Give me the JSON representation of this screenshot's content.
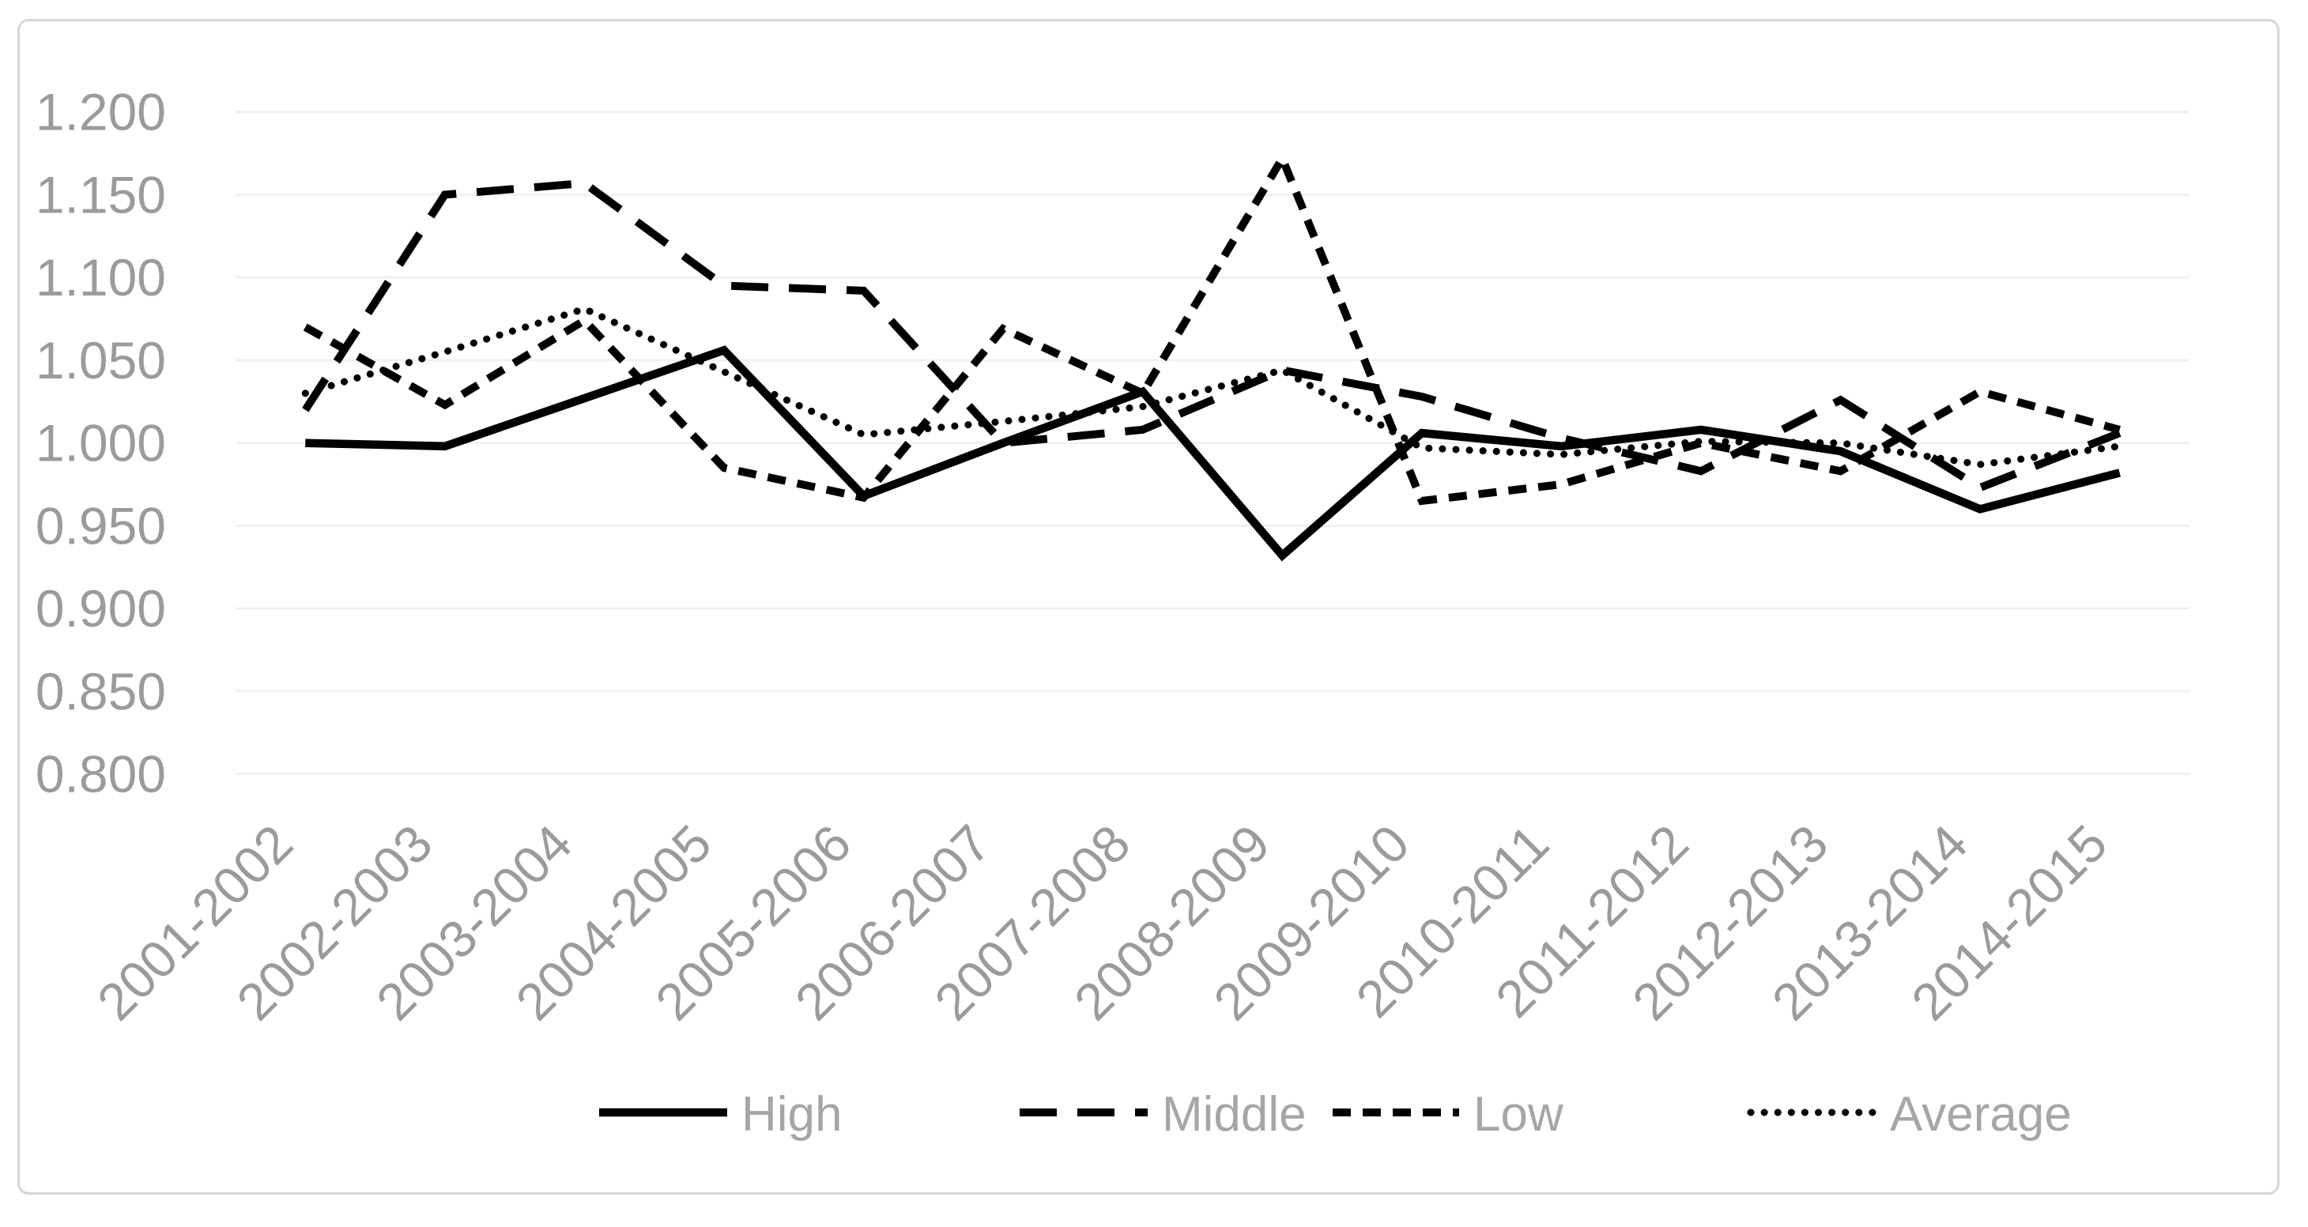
{
  "chart_data": {
    "type": "line",
    "title": "",
    "xlabel": "",
    "ylabel": "",
    "grid": "horizontal",
    "legend_position": "bottom",
    "categories": [
      "2001-2002",
      "2002-2003",
      "2003-2004",
      "2004-2005",
      "2005-2006",
      "2006-2007",
      "2007-2008",
      "2008-2009",
      "2009-2010",
      "2010-2011",
      "2011-2012",
      "2012-2013",
      "2013-2014",
      "2014-2015"
    ],
    "series": [
      {
        "name": "High",
        "line_style": "solid",
        "values": [
          1.0,
          0.998,
          1.027,
          1.056,
          0.968,
          1.0,
          1.031,
          0.932,
          1.006,
          0.998,
          1.008,
          0.995,
          0.96,
          0.982
        ]
      },
      {
        "name": "Middle",
        "line_style": "long-dash",
        "values": [
          1.02,
          1.15,
          1.157,
          1.095,
          1.092,
          1.0,
          1.008,
          1.044,
          1.028,
          1.003,
          0.983,
          1.026,
          0.973,
          1.006
        ]
      },
      {
        "name": "Low",
        "line_style": "short-dash",
        "values": [
          1.07,
          1.023,
          1.074,
          0.985,
          0.967,
          1.069,
          1.03,
          1.172,
          0.965,
          0.975,
          1.0,
          0.983,
          1.031,
          1.008
        ]
      },
      {
        "name": "Average",
        "line_style": "dotted",
        "values": [
          1.03,
          1.055,
          1.081,
          1.043,
          1.005,
          1.013,
          1.022,
          1.044,
          0.997,
          0.993,
          1.001,
          1.0,
          0.987,
          0.998
        ]
      }
    ],
    "y_axis": {
      "min": 0.8,
      "max": 1.2,
      "tick_step": 0.05,
      "tick_labels": [
        "1.200",
        "1.150",
        "1.100",
        "1.050",
        "1.000",
        "0.950",
        "0.900",
        "0.850",
        "0.800"
      ]
    },
    "colors": {
      "line": "#000000",
      "gridline": "#f1f1f1",
      "axis_label_text": "#9b9b9b",
      "legend_text": "#a6a6a6",
      "card_border": "#d6d6d6",
      "background": "#ffffff"
    }
  }
}
